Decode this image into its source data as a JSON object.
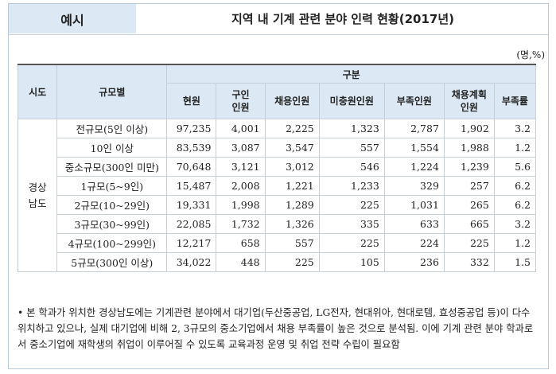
{
  "header": {
    "tag": "예시",
    "title": "지역 내 기계 관련 분야 인력 현황(2017년)"
  },
  "unit": "(명,%)",
  "table": {
    "col_region": "시도",
    "col_scale": "규모별",
    "col_group": "구분",
    "columns": [
      "현원",
      "구인\n인원",
      "채용인원",
      "미충원인원",
      "부족인원",
      "채용계획\n인원",
      "부족률"
    ],
    "region": "경상\n남도",
    "rows": [
      {
        "scale": "전규모(5인 이상)",
        "values": [
          "97,235",
          "4,001",
          "2,225",
          "1,323",
          "2,787",
          "1,902",
          "3.2"
        ]
      },
      {
        "scale": "10인 이상",
        "values": [
          "83,539",
          "3,087",
          "3,547",
          "557",
          "1,554",
          "1,988",
          "1.2"
        ]
      },
      {
        "scale": "중소규모(300인 미만)",
        "values": [
          "70,648",
          "3,121",
          "3,012",
          "546",
          "1,224",
          "1,239",
          "5.6"
        ]
      },
      {
        "scale": "1규모(5~9인)",
        "values": [
          "15,487",
          "2,008",
          "1,221",
          "1,233",
          "329",
          "257",
          "6.2"
        ]
      },
      {
        "scale": "2규모(10~29인)",
        "values": [
          "19,331",
          "1,998",
          "1,289",
          "225",
          "1,031",
          "265",
          "6.2"
        ]
      },
      {
        "scale": "3규모(30~99인)",
        "values": [
          "22,085",
          "1,732",
          "1,326",
          "335",
          "633",
          "665",
          "3.2"
        ]
      },
      {
        "scale": "4규모(100~299인)",
        "values": [
          "12,217",
          "658",
          "557",
          "225",
          "224",
          "225",
          "1.2"
        ]
      },
      {
        "scale": "5규모(300인 이상)",
        "values": [
          "34,022",
          "448",
          "225",
          "105",
          "236",
          "332",
          "1.5"
        ]
      }
    ]
  },
  "note": "• 본 학과가 위치한 경상남도에는 기계관련 분야에서 대기업(두산중공업, LG전자, 현대위아, 현대로템, 효성중공업 등)이 다수 위치하고 있으나, 실제 대기업에 비해 2, 3규모의 중소기업에서 채용 부족률이 높은 것으로 분석됨. 이에 기계 관련 분야 학과로서 중소기업에 재학생의 취업이 이루어질 수 있도록 교육과정 운영 및 취업 전략 수립이 필요함"
}
